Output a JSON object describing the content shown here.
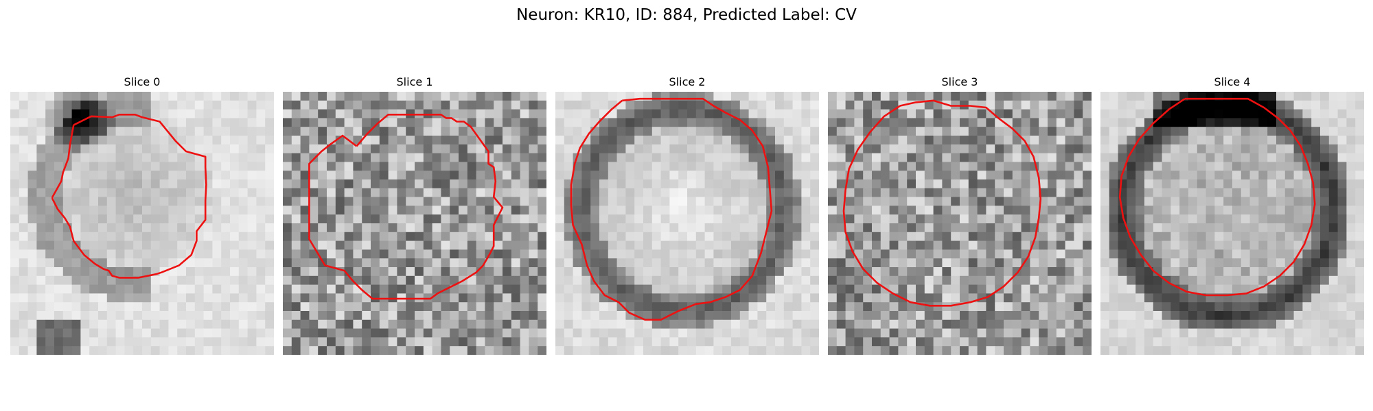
{
  "figure": {
    "title": "Neuron: KR10, ID: 884, Predicted Label: CV"
  },
  "panels": [
    {
      "title": "Slice 0",
      "texture": "blurred-cell-dark-upper-left"
    },
    {
      "title": "Slice 1",
      "texture": "noisy-uniform"
    },
    {
      "title": "Slice 2",
      "texture": "bright-cell-dark-ring"
    },
    {
      "title": "Slice 3",
      "texture": "noisy-uniform"
    },
    {
      "title": "Slice 4",
      "texture": "gray-cell-dark-ring"
    }
  ],
  "colors": {
    "contour": "#ee1111",
    "background": "#ffffff"
  },
  "colormap": "gray"
}
